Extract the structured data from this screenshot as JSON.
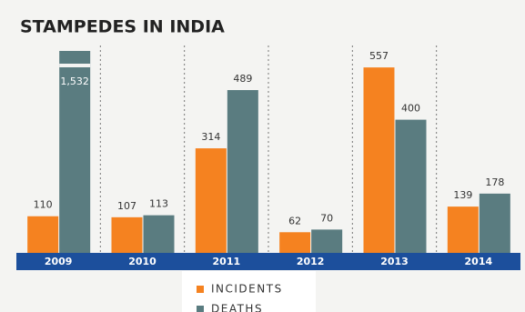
{
  "chart_data": {
    "type": "bar",
    "title": "STAMPEDES IN INDIA",
    "categories": [
      "2009",
      "2010",
      "2011",
      "2012",
      "2013",
      "2014"
    ],
    "series": [
      {
        "name": "INCIDENTS",
        "color": "#f58220",
        "values": [
          110,
          107,
          314,
          62,
          557,
          139
        ]
      },
      {
        "name": "DEATHS",
        "color": "#5a7c80",
        "values": [
          1532,
          113,
          489,
          70,
          400,
          178
        ],
        "value_labels": [
          "1,532",
          "113",
          "489",
          "70",
          "400",
          "178"
        ]
      }
    ]
  }
}
